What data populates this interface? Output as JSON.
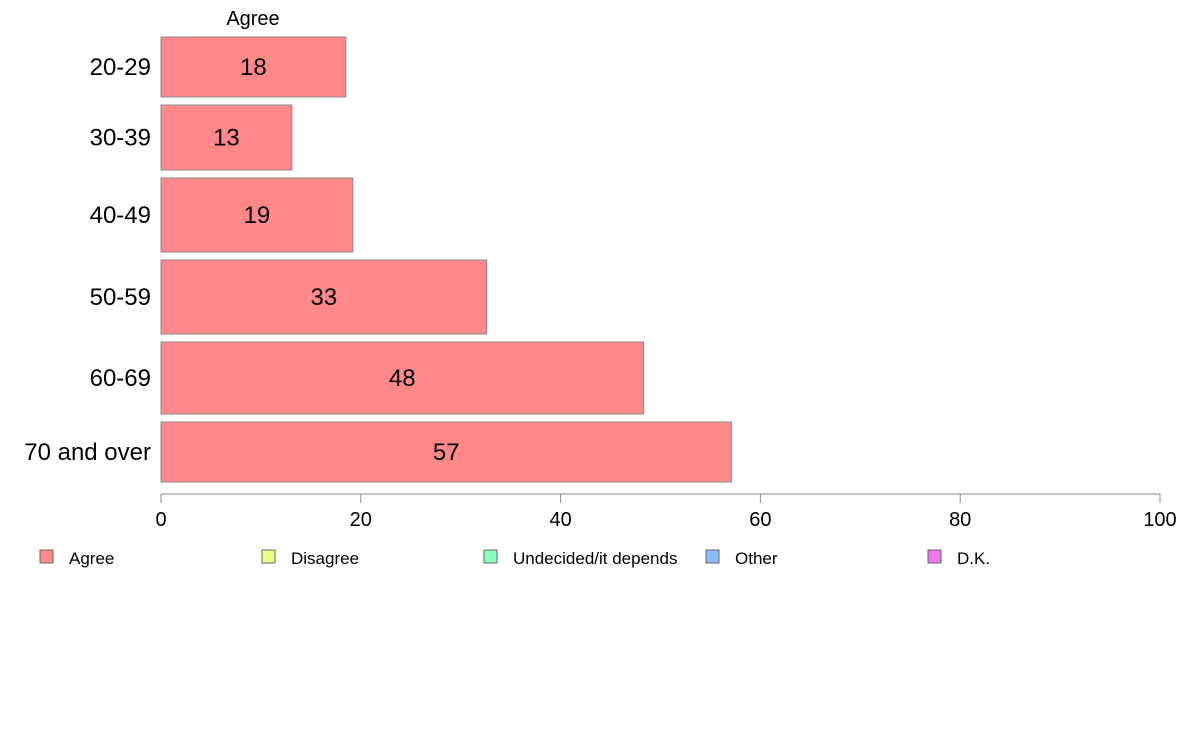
{
  "chart_data": {
    "type": "bar",
    "orientation": "horizontal",
    "series_title": "Agree",
    "categories": [
      "20-29",
      "30-39",
      "40-49",
      "50-59",
      "60-69",
      "70 and over"
    ],
    "series": [
      {
        "name": "Agree",
        "values": [
          18.5,
          13.1,
          19.2,
          32.6,
          48.3,
          57.1
        ],
        "labels": [
          "18",
          "13",
          "19",
          "33",
          "48",
          "57"
        ]
      }
    ],
    "xlim": [
      0,
      100
    ],
    "xticks": [
      0,
      20,
      40,
      60,
      80,
      100
    ],
    "xtick_labels": [
      "0",
      "20",
      "40",
      "60",
      "80",
      "100"
    ],
    "grid": false,
    "legend_position": "bottom",
    "legend": [
      {
        "label": "Agree",
        "color": "#ff8888"
      },
      {
        "label": "Disagree",
        "color": "#eeff88"
      },
      {
        "label": "Undecided/it depends",
        "color": "#88ffbb"
      },
      {
        "label": "Other",
        "color": "#88bbff"
      },
      {
        "label": "D.K.",
        "color": "#ee77ee"
      }
    ],
    "bar_color": "#ff8888",
    "bar_stroke": "#888888"
  }
}
